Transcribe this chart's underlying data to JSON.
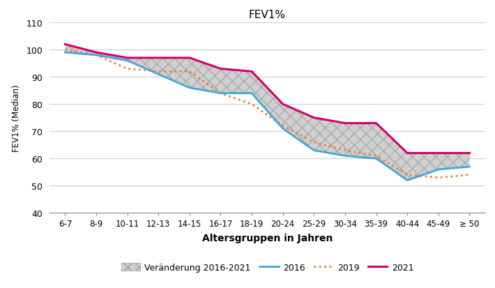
{
  "title": "FEV1%",
  "xlabel": "Altersgruppen in Jahren",
  "ylabel": "FEV1% (Median)",
  "categories": [
    "6-7",
    "8-9",
    "10-11",
    "12-13",
    "14-15",
    "16-17",
    "18-19",
    "20-24",
    "25-29",
    "30-34",
    "35-39",
    "40-44",
    "45-49",
    "≥ 50"
  ],
  "y2016": [
    99,
    98,
    96,
    91,
    86,
    84,
    84,
    71,
    63,
    61,
    60,
    52,
    56,
    57
  ],
  "y2019": [
    100,
    98,
    93,
    92,
    92,
    84,
    80,
    72,
    66,
    63,
    61,
    54,
    53,
    54
  ],
  "y2021": [
    102,
    99,
    97,
    97,
    97,
    93,
    92,
    80,
    75,
    73,
    73,
    62,
    62,
    62
  ],
  "color_2016": "#3EA6DC",
  "color_2019": "#ED7D31",
  "color_2021": "#D4006B",
  "fill_color": "#D0D0D0",
  "fill_hatch": "xx",
  "ylim": [
    40,
    110
  ],
  "yticks": [
    40,
    50,
    60,
    70,
    80,
    90,
    100,
    110
  ],
  "legend_labels": [
    "Veränderung 2016-2021",
    "2016",
    "2019",
    "2021"
  ]
}
